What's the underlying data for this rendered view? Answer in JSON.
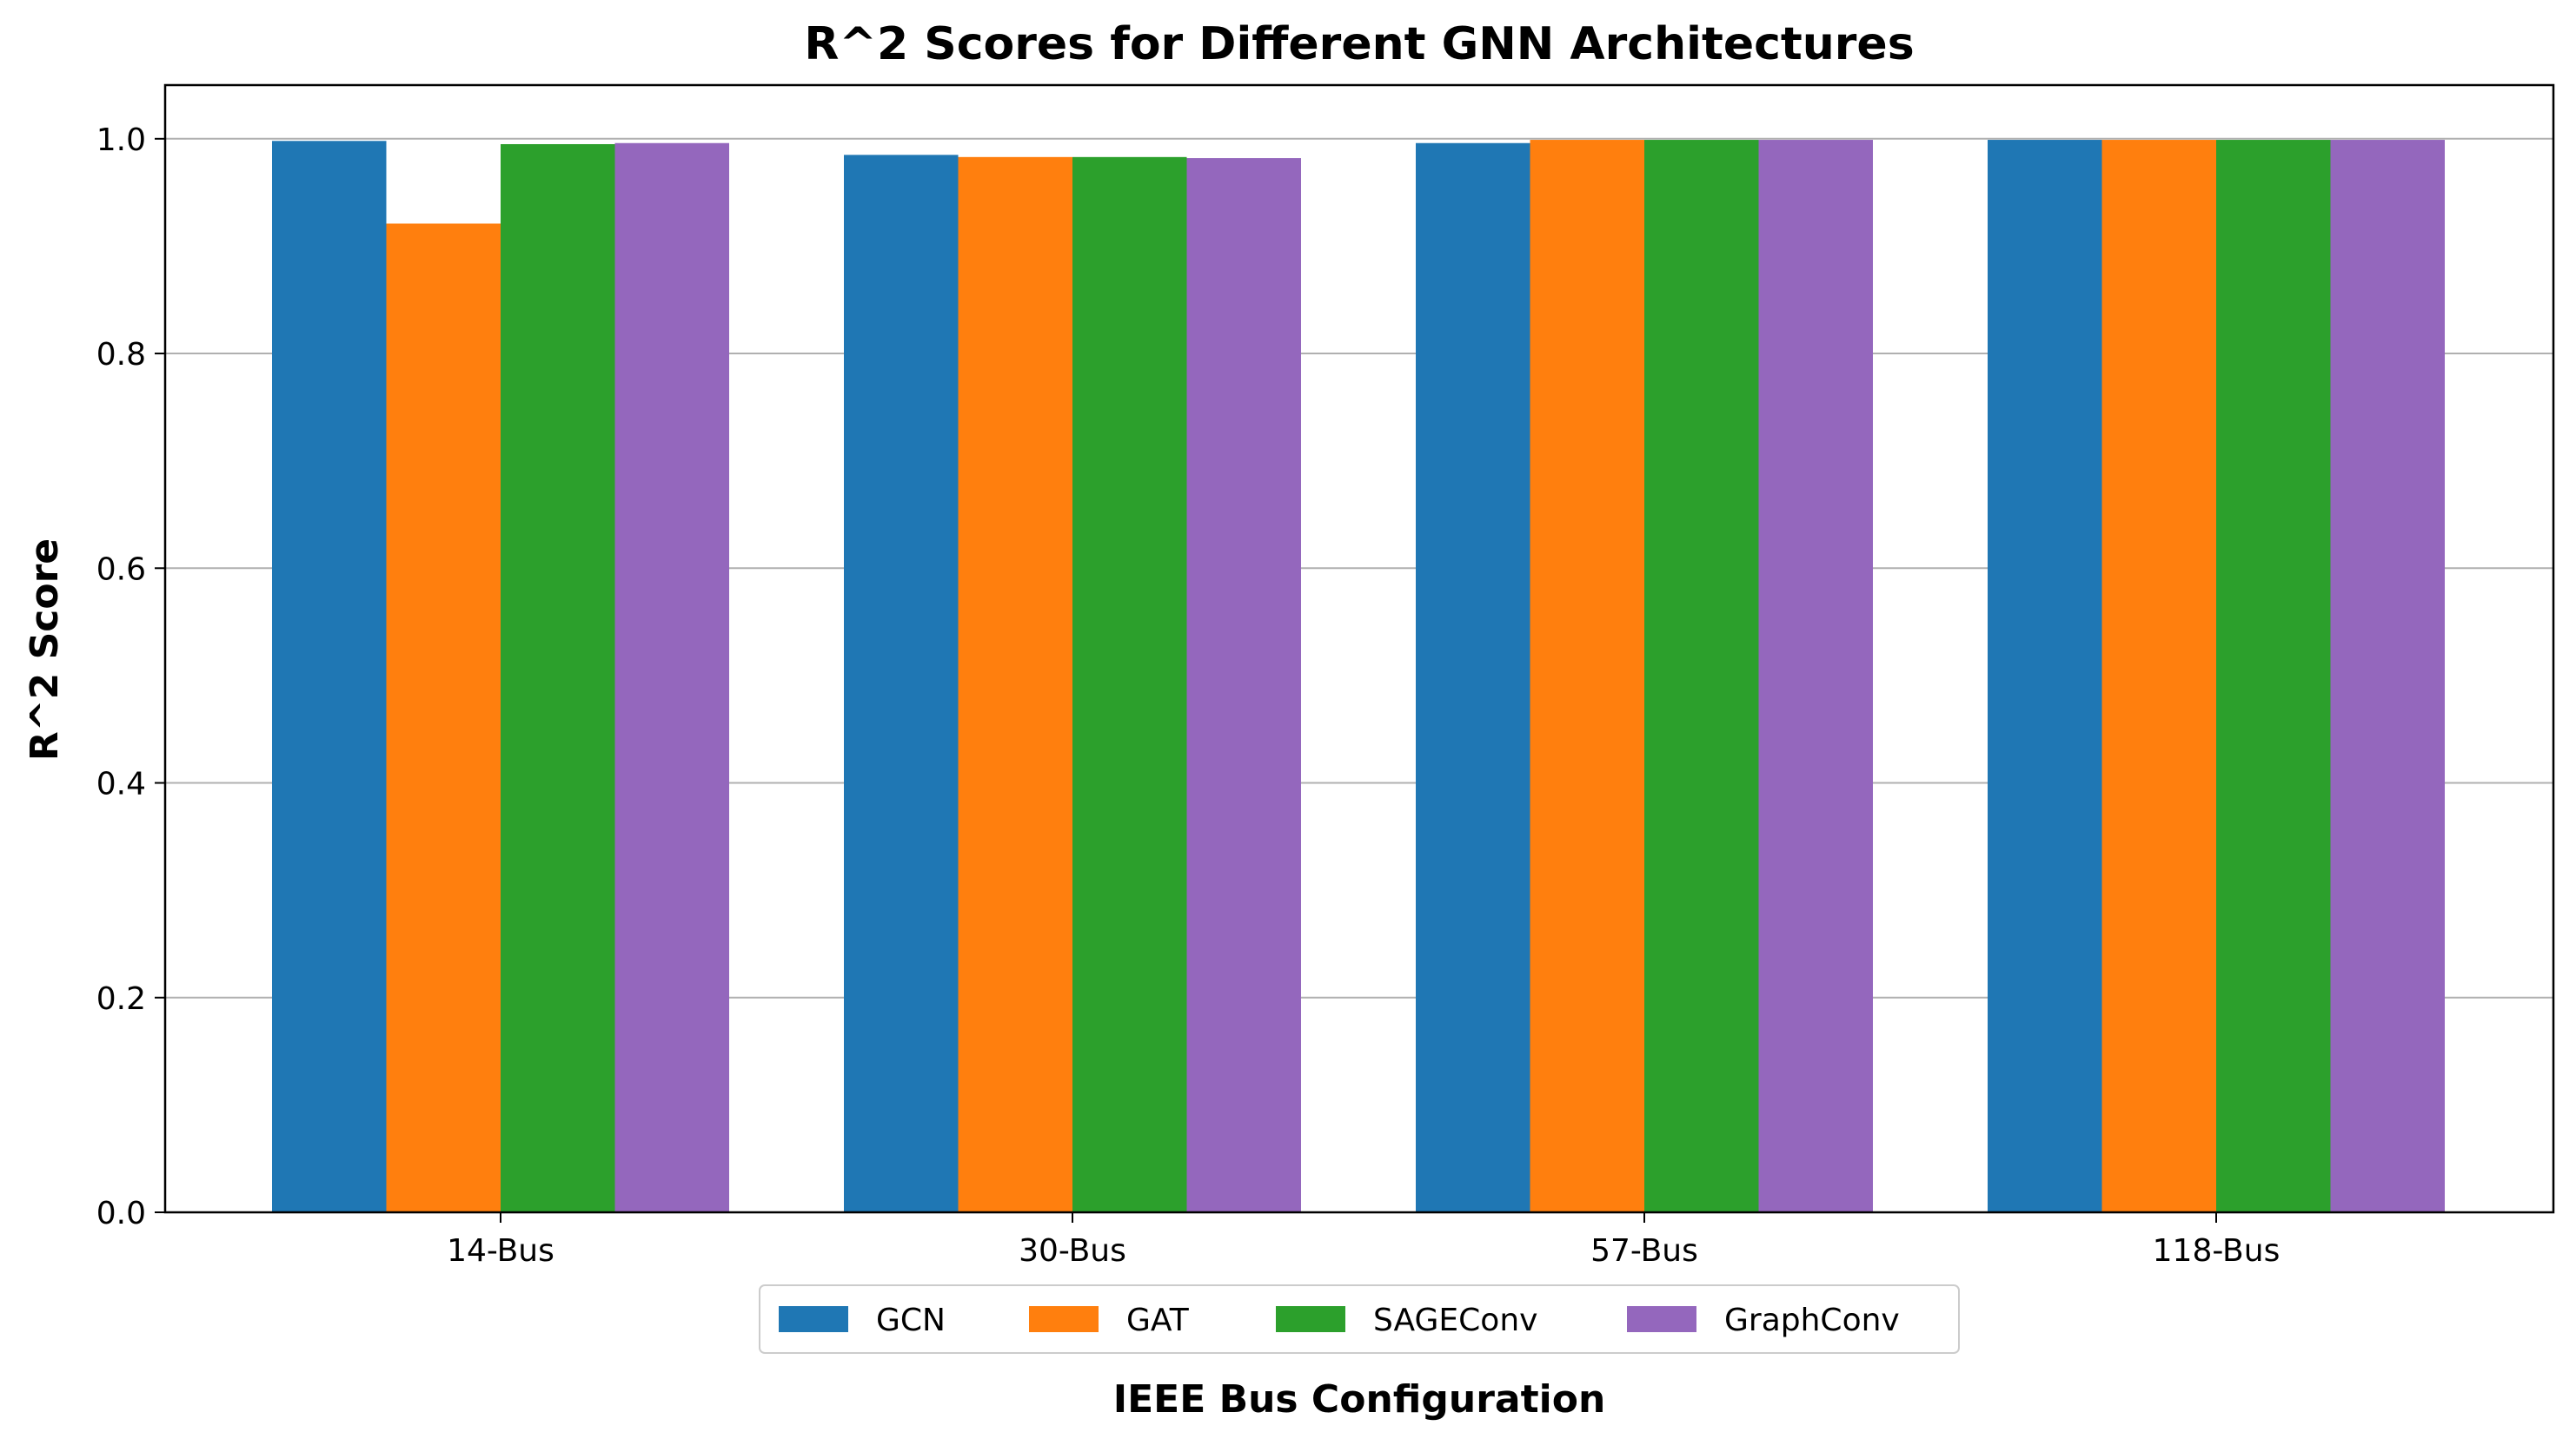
{
  "chart_data": {
    "type": "bar",
    "title": "R^2 Scores for Different GNN Architectures",
    "xlabel": "IEEE Bus Configuration",
    "ylabel": "R^2 Score",
    "categories": [
      "14-Bus",
      "30-Bus",
      "57-Bus",
      "118-Bus"
    ],
    "series": [
      {
        "name": "GCN",
        "color": "#1f77b4",
        "values": [
          0.998,
          0.985,
          0.996,
          0.999
        ]
      },
      {
        "name": "GAT",
        "color": "#ff7f0e",
        "values": [
          0.921,
          0.983,
          0.999,
          0.999
        ]
      },
      {
        "name": "SAGEConv",
        "color": "#2ca02c",
        "values": [
          0.995,
          0.983,
          0.999,
          0.999
        ]
      },
      {
        "name": "GraphConv",
        "color": "#9467bd",
        "values": [
          0.996,
          0.982,
          0.999,
          0.999
        ]
      }
    ],
    "ylim": [
      0,
      1.05
    ],
    "yticks": [
      "0.0",
      "0.2",
      "0.4",
      "0.6",
      "0.8",
      "1.0"
    ],
    "ytick_values": [
      0,
      0.2,
      0.4,
      0.6,
      0.8,
      1.0
    ],
    "grid": "horizontal",
    "legend_position": "bottom-center"
  }
}
